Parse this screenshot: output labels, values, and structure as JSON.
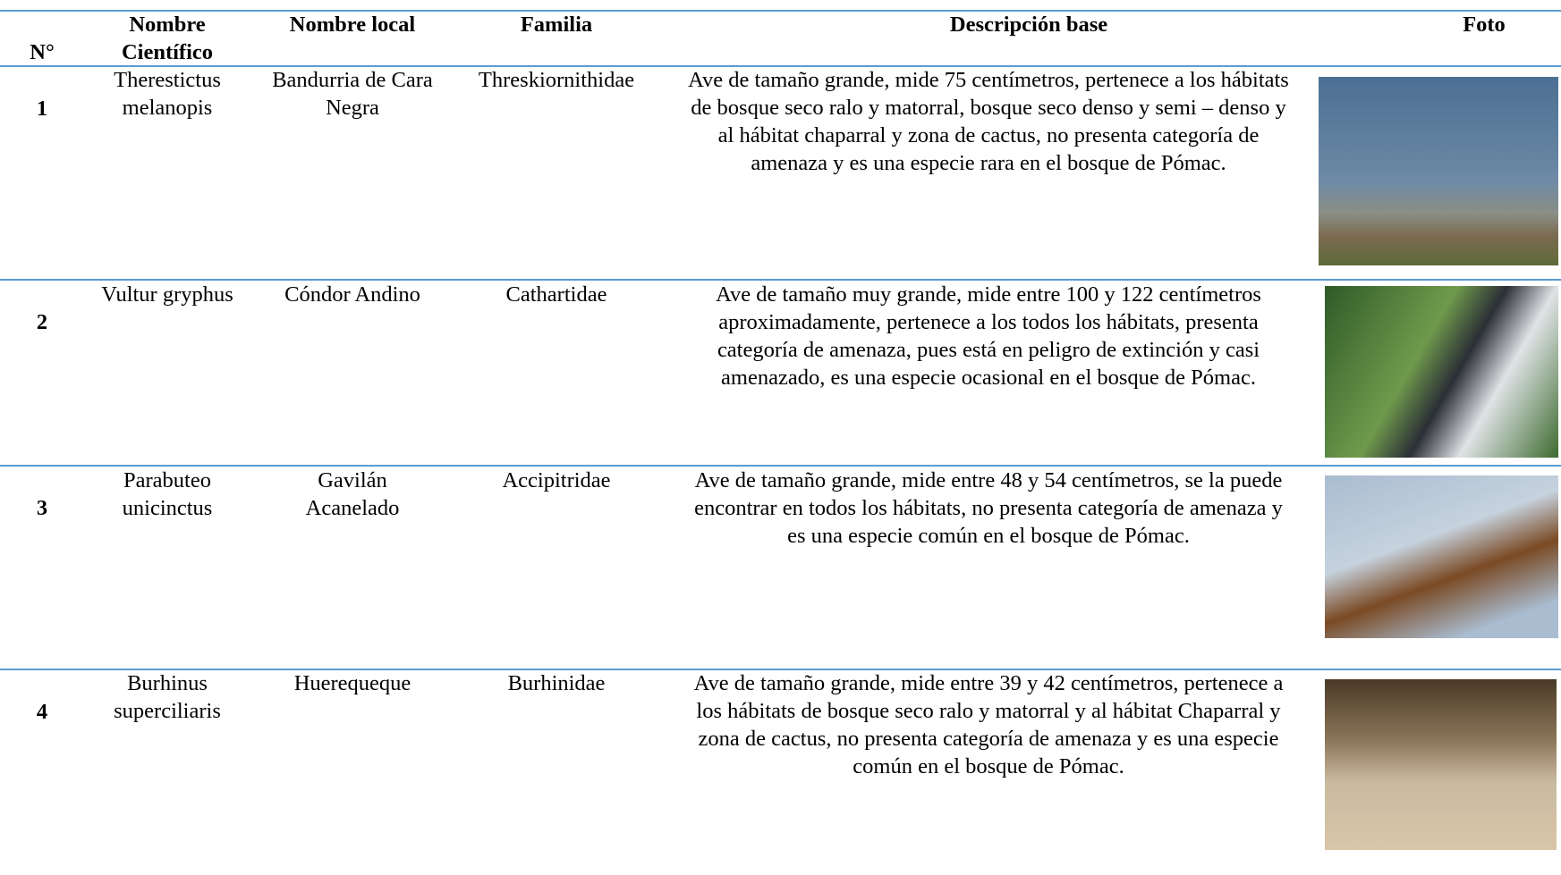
{
  "header": {
    "columns": [
      "N°",
      "Nombre Científico",
      "Nombre local",
      "Familia",
      "Descripción base",
      "Foto"
    ]
  },
  "rows": [
    {
      "number": "1",
      "scientific_name": "Therestictus melanopis",
      "local_name": "Bandurria de Cara Negra",
      "family": "Threskiornithidae",
      "description": "Ave de tamaño grande, mide 75 centímetros, pertenece a los hábitats de bosque seco ralo y matorral, bosque seco denso y semi – denso y al hábitat chaparral y zona de cactus, no presenta categoría de amenaza y es una especie rara en el bosque de Pómac."
    },
    {
      "number": "2",
      "scientific_name": "Vultur gryphus",
      "local_name": "Cóndor Andino",
      "family": "Cathartidae",
      "description": "Ave de tamaño muy grande, mide entre 100 y 122 centímetros aproximadamente, pertenece a los todos los hábitats, presenta categoría de amenaza, pues está en peligro de extinción y casi amenazado, es una especie ocasional en el bosque de Pómac."
    },
    {
      "number": "3",
      "scientific_name": "Parabuteo unicinctus",
      "local_name": "Gavilán Acanelado",
      "family": "Accipitridae",
      "description": "Ave de tamaño grande, mide entre 48 y 54 centímetros, se la puede encontrar en todos los hábitats, no presenta categoría de amenaza y es una especie común en el bosque de Pómac."
    },
    {
      "number": "4",
      "scientific_name": "Burhinus superciliaris",
      "local_name": "Huerequeque",
      "family": "Burhinidae",
      "description": "Ave de tamaño grande, mide entre 39 y 42 centímetros, pertenece a los hábitats de bosque seco ralo y matorral y al hábitat Chaparral y zona de cactus, no presenta categoría de amenaza y es una especie común en el bosque de Pómac."
    }
  ]
}
